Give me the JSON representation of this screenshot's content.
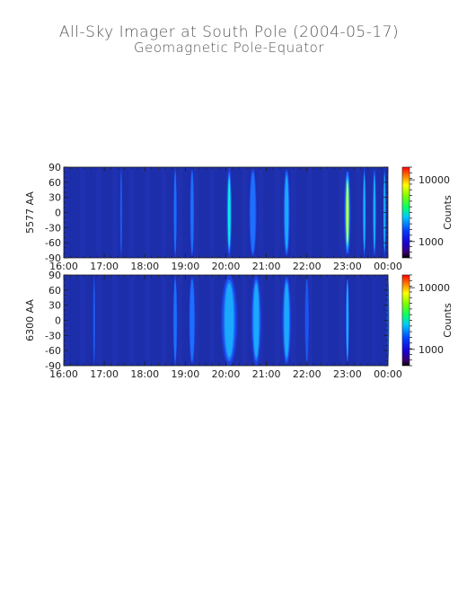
{
  "title": "All-Sky Imager at South Pole (2004-05-17)",
  "subtitle": "Geomagnetic Pole-Equator",
  "chart_data": [
    {
      "type": "heatmap",
      "ylabel": "5577 AA",
      "colorbar_label": "Counts",
      "colorbar_ticks": [
        "10000",
        "1000"
      ],
      "colorbar_scale": "log",
      "x_ticks": [
        "16:00",
        "17:00",
        "18:00",
        "19:00",
        "20:00",
        "21:00",
        "22:00",
        "23:00",
        "00:00"
      ],
      "y_ticks": [
        "90",
        "60",
        "30",
        "0",
        "-30",
        "-60",
        "-90"
      ],
      "xlim": [
        "16:00",
        "00:00"
      ],
      "ylim": [
        -90,
        90
      ],
      "background": "#1a2da8",
      "features": [
        {
          "center": "17:25",
          "width_h": 0.05,
          "intensity": 0.25
        },
        {
          "center": "18:45",
          "width_h": 0.08,
          "intensity": 0.35
        },
        {
          "center": "19:10",
          "width_h": 0.1,
          "intensity": 0.35
        },
        {
          "center": "20:05",
          "width_h": 0.13,
          "intensity": 0.62
        },
        {
          "center": "20:40",
          "width_h": 0.18,
          "intensity": 0.35
        },
        {
          "center": "21:30",
          "width_h": 0.16,
          "intensity": 0.45
        },
        {
          "center": "23:00",
          "width_h": 0.17,
          "intensity": 0.8
        },
        {
          "center": "23:25",
          "width_h": 0.08,
          "intensity": 0.55
        },
        {
          "center": "23:40",
          "width_h": 0.08,
          "intensity": 0.55
        },
        {
          "center": "23:55",
          "width_h": 0.05,
          "intensity": 0.55
        }
      ]
    },
    {
      "type": "heatmap",
      "ylabel": "6300 AA",
      "colorbar_label": "Counts",
      "colorbar_ticks": [
        "10000",
        "1000"
      ],
      "colorbar_scale": "log",
      "x_ticks": [
        "16:00",
        "17:00",
        "18:00",
        "19:00",
        "20:00",
        "21:00",
        "22:00",
        "23:00",
        "00:00"
      ],
      "y_ticks": [
        "90",
        "60",
        "30",
        "0",
        "-30",
        "-60",
        "-90"
      ],
      "xlim": [
        "16:00",
        "00:00"
      ],
      "ylim": [
        -90,
        90
      ],
      "background": "#1a2da8",
      "features": [
        {
          "center": "16:45",
          "width_h": 0.05,
          "intensity": 0.3
        },
        {
          "center": "18:45",
          "width_h": 0.1,
          "intensity": 0.35
        },
        {
          "center": "19:10",
          "width_h": 0.15,
          "intensity": 0.38
        },
        {
          "center": "20:05",
          "width_h": 0.4,
          "intensity": 0.55
        },
        {
          "center": "20:45",
          "width_h": 0.25,
          "intensity": 0.45
        },
        {
          "center": "21:30",
          "width_h": 0.22,
          "intensity": 0.48
        },
        {
          "center": "22:00",
          "width_h": 0.1,
          "intensity": 0.3
        },
        {
          "center": "23:00",
          "width_h": 0.08,
          "intensity": 0.5
        },
        {
          "center": "00:00",
          "width_h": 0.05,
          "intensity": 0.4
        }
      ]
    }
  ]
}
